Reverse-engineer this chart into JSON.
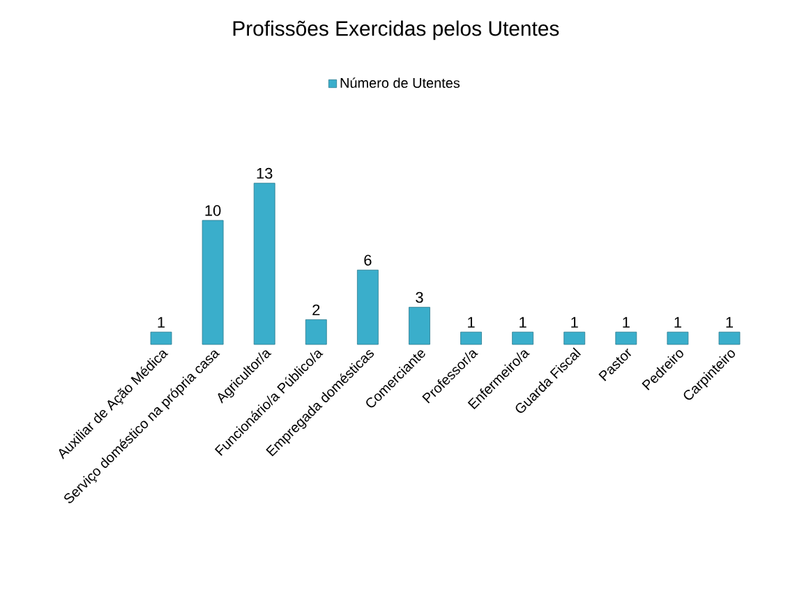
{
  "chart_data": {
    "type": "bar",
    "title": "Profissões Exercidas pelos Utentes",
    "categories": [
      "Auxiliar de Ação Médica",
      "Serviço doméstico na própria casa",
      "Agricultor/a",
      "Funcionário/a Público/a",
      "Empregada domésticas",
      "Comerciante",
      "Professor/a",
      "Enfermeiro/a",
      "Guarda Fiscal",
      "Pastor",
      "Pedreiro",
      "Carpinteiro"
    ],
    "series": [
      {
        "name": "Número de Utentes",
        "color": "#3aaecb",
        "values": [
          1,
          10,
          13,
          2,
          6,
          3,
          1,
          1,
          1,
          1,
          1,
          1
        ]
      }
    ],
    "data_labels": true,
    "legend": "top",
    "grid": false
  }
}
